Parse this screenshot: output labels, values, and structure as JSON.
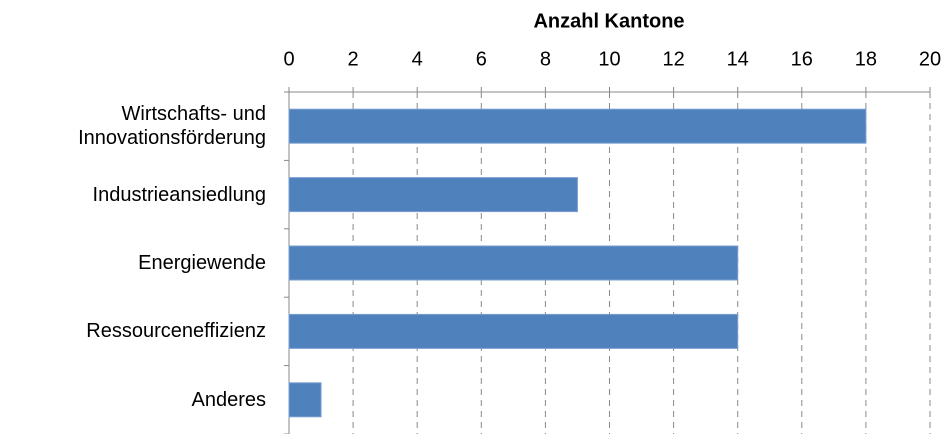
{
  "chart_data": {
    "type": "bar",
    "orientation": "horizontal",
    "x_label": "Anzahl Kantone",
    "categories": [
      "Wirtschafts- und Innovationsförderung",
      "Industrieansiedlung",
      "Energiewende",
      "Ressourceneffizienz",
      "Anderes"
    ],
    "values": [
      18,
      9,
      14,
      14,
      1
    ],
    "color": "#4f81bd",
    "xlim": [
      0,
      20
    ],
    "xticks": [
      0,
      2,
      4,
      6,
      8,
      10,
      12,
      14,
      16,
      18,
      20
    ],
    "grid": true
  }
}
